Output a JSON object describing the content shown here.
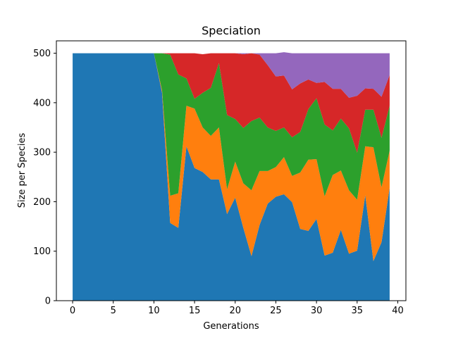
{
  "chart_data": {
    "type": "area",
    "stacked": true,
    "title": "Speciation",
    "xlabel": "Generations",
    "ylabel": "Size per Species",
    "xlim": [
      -2,
      41
    ],
    "ylim": [
      0,
      525
    ],
    "x_ticks": [
      0,
      5,
      10,
      15,
      20,
      25,
      30,
      35,
      40
    ],
    "y_ticks": [
      0,
      100,
      200,
      300,
      400,
      500
    ],
    "grid": false,
    "legend": "none",
    "x": [
      0,
      1,
      2,
      3,
      4,
      5,
      6,
      7,
      8,
      9,
      10,
      11,
      12,
      13,
      14,
      15,
      16,
      17,
      18,
      19,
      20,
      21,
      22,
      23,
      24,
      25,
      26,
      27,
      28,
      29,
      30,
      31,
      32,
      33,
      34,
      35,
      36,
      37,
      38,
      39
    ],
    "series": [
      {
        "color": "#1f77b4",
        "values": [
          500,
          500,
          500,
          500,
          500,
          500,
          500,
          500,
          500,
          500,
          500,
          420,
          157,
          147,
          312,
          268,
          260,
          245,
          245,
          175,
          208,
          147,
          90,
          153,
          196,
          210,
          215,
          199,
          145,
          141,
          165,
          91,
          97,
          143,
          95,
          101,
          213,
          80,
          118,
          228
        ]
      },
      {
        "color": "#ff7f0e",
        "values": [
          0,
          0,
          0,
          0,
          0,
          0,
          0,
          0,
          0,
          0,
          0,
          5,
          55,
          70,
          82,
          120,
          90,
          88,
          105,
          50,
          73,
          90,
          133,
          109,
          66,
          60,
          75,
          53,
          114,
          144,
          121,
          120,
          157,
          120,
          128,
          103,
          99,
          230,
          111,
          75
        ]
      },
      {
        "color": "#2ca02c",
        "values": [
          0,
          0,
          0,
          0,
          0,
          0,
          0,
          0,
          0,
          0,
          0,
          75,
          285,
          240,
          55,
          20,
          70,
          97,
          130,
          150,
          86,
          112,
          140,
          108,
          88,
          73,
          60,
          78,
          82,
          102,
          123,
          145,
          90,
          105,
          125,
          95,
          74,
          76,
          100,
          91
        ]
      },
      {
        "color": "#d62728",
        "values": [
          0,
          0,
          0,
          0,
          0,
          0,
          0,
          0,
          0,
          0,
          0,
          0,
          3,
          43,
          51,
          92,
          78,
          70,
          20,
          125,
          133,
          149,
          137,
          127,
          126,
          110,
          105,
          97,
          98,
          60,
          31,
          86,
          84,
          60,
          62,
          115,
          43,
          42,
          83,
          62
        ]
      },
      {
        "color": "#9467bd",
        "values": [
          0,
          0,
          0,
          0,
          0,
          0,
          0,
          0,
          0,
          0,
          0,
          0,
          0,
          0,
          0,
          0,
          0,
          0,
          0,
          0,
          0,
          2,
          0,
          3,
          24,
          47,
          47,
          73,
          61,
          53,
          60,
          58,
          72,
          72,
          90,
          86,
          71,
          72,
          88,
          44
        ]
      }
    ]
  }
}
